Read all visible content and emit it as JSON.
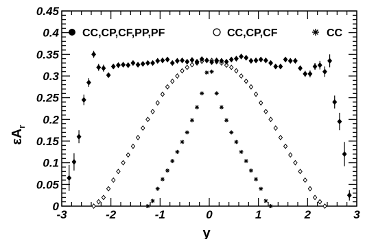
{
  "chart_data": {
    "type": "scatter",
    "xlabel": "y",
    "ylabel": "εA",
    "ylabel_sub": "r",
    "xlim": [
      -3,
      3
    ],
    "ylim": [
      0,
      0.45
    ],
    "x_ticks": [
      "-3",
      "-2",
      "-1",
      "0",
      "1",
      "2",
      "3"
    ],
    "y_ticks": [
      "0",
      "0.05",
      "0.1",
      "0.15",
      "0.2",
      "0.25",
      "0.3",
      "0.35",
      "0.4",
      "0.45"
    ],
    "grid": false,
    "legend_position": "top",
    "series": [
      {
        "name": "CC,CP,CF,PP,PF",
        "marker": "filled-diamond",
        "points": [
          [
            -2.85,
            0.065,
            0.03
          ],
          [
            -2.75,
            0.102,
            0.02
          ],
          [
            -2.65,
            0.16,
            0.015
          ],
          [
            -2.55,
            0.245,
            0.012
          ],
          [
            -2.45,
            0.285,
            0.01
          ],
          [
            -2.35,
            0.35,
            0.008
          ],
          [
            -2.25,
            0.32,
            0.008
          ],
          [
            -2.15,
            0.318,
            0.008
          ],
          [
            -2.05,
            0.302,
            0.006
          ],
          [
            -1.95,
            0.322,
            0.005
          ],
          [
            -1.85,
            0.325,
            0.005
          ],
          [
            -1.75,
            0.326,
            0.004
          ],
          [
            -1.65,
            0.325,
            0.004
          ],
          [
            -1.55,
            0.33,
            0.004
          ],
          [
            -1.45,
            0.326,
            0.004
          ],
          [
            -1.35,
            0.328,
            0.004
          ],
          [
            -1.25,
            0.33,
            0.004
          ],
          [
            -1.15,
            0.33,
            0.004
          ],
          [
            -1.05,
            0.335,
            0.004
          ],
          [
            -0.95,
            0.336,
            0.004
          ],
          [
            -0.85,
            0.338,
            0.004
          ],
          [
            -0.75,
            0.33,
            0.004
          ],
          [
            -0.65,
            0.335,
            0.004
          ],
          [
            -0.55,
            0.336,
            0.004
          ],
          [
            -0.45,
            0.333,
            0.004
          ],
          [
            -0.35,
            0.337,
            0.004
          ],
          [
            -0.25,
            0.333,
            0.004
          ],
          [
            -0.15,
            0.339,
            0.004
          ],
          [
            -0.05,
            0.336,
            0.004
          ],
          [
            0.05,
            0.332,
            0.004
          ],
          [
            0.15,
            0.336,
            0.004
          ],
          [
            0.25,
            0.335,
            0.004
          ],
          [
            0.35,
            0.333,
            0.004
          ],
          [
            0.45,
            0.338,
            0.004
          ],
          [
            0.55,
            0.34,
            0.004
          ],
          [
            0.65,
            0.345,
            0.004
          ],
          [
            0.75,
            0.342,
            0.004
          ],
          [
            0.85,
            0.335,
            0.004
          ],
          [
            0.95,
            0.336,
            0.004
          ],
          [
            1.05,
            0.338,
            0.004
          ],
          [
            1.15,
            0.336,
            0.004
          ],
          [
            1.25,
            0.33,
            0.004
          ],
          [
            1.35,
            0.322,
            0.004
          ],
          [
            1.45,
            0.322,
            0.004
          ],
          [
            1.55,
            0.338,
            0.005
          ],
          [
            1.65,
            0.335,
            0.005
          ],
          [
            1.75,
            0.335,
            0.005
          ],
          [
            1.85,
            0.318,
            0.006
          ],
          [
            1.95,
            0.305,
            0.007
          ],
          [
            2.05,
            0.305,
            0.008
          ],
          [
            2.15,
            0.322,
            0.008
          ],
          [
            2.25,
            0.325,
            0.01
          ],
          [
            2.35,
            0.31,
            0.012
          ],
          [
            2.45,
            0.335,
            0.015
          ],
          [
            2.55,
            0.24,
            0.015
          ],
          [
            2.65,
            0.195,
            0.02
          ],
          [
            2.75,
            0.12,
            0.028
          ],
          [
            2.85,
            0.025,
            0.012
          ]
        ]
      },
      {
        "name": "CC,CP,CF",
        "marker": "open-diamond",
        "points": [
          [
            -2.35,
            0.0
          ],
          [
            -2.25,
            0.01
          ],
          [
            -2.15,
            0.02
          ],
          [
            -2.05,
            0.04
          ],
          [
            -1.95,
            0.06
          ],
          [
            -1.85,
            0.08
          ],
          [
            -1.75,
            0.1
          ],
          [
            -1.65,
            0.118
          ],
          [
            -1.55,
            0.138
          ],
          [
            -1.45,
            0.158
          ],
          [
            -1.35,
            0.18
          ],
          [
            -1.25,
            0.2
          ],
          [
            -1.15,
            0.218
          ],
          [
            -1.05,
            0.238
          ],
          [
            -0.95,
            0.258
          ],
          [
            -0.85,
            0.275
          ],
          [
            -0.75,
            0.288
          ],
          [
            -0.65,
            0.3
          ],
          [
            -0.55,
            0.312
          ],
          [
            -0.45,
            0.32
          ],
          [
            -0.35,
            0.326
          ],
          [
            -0.25,
            0.33
          ],
          [
            -0.15,
            0.334
          ],
          [
            -0.05,
            0.336
          ],
          [
            0.05,
            0.336
          ],
          [
            0.15,
            0.333
          ],
          [
            0.25,
            0.33
          ],
          [
            0.35,
            0.325
          ],
          [
            0.45,
            0.32
          ],
          [
            0.55,
            0.312
          ],
          [
            0.65,
            0.3
          ],
          [
            0.75,
            0.288
          ],
          [
            0.85,
            0.275
          ],
          [
            0.95,
            0.258
          ],
          [
            1.05,
            0.238
          ],
          [
            1.15,
            0.218
          ],
          [
            1.25,
            0.2
          ],
          [
            1.35,
            0.18
          ],
          [
            1.45,
            0.158
          ],
          [
            1.55,
            0.138
          ],
          [
            1.65,
            0.118
          ],
          [
            1.75,
            0.1
          ],
          [
            1.85,
            0.08
          ],
          [
            1.95,
            0.06
          ],
          [
            2.05,
            0.04
          ],
          [
            2.15,
            0.02
          ],
          [
            2.25,
            0.01
          ],
          [
            2.35,
            0.0
          ]
        ]
      },
      {
        "name": "CC",
        "marker": "asterisk",
        "points": [
          [
            -1.25,
            0.0
          ],
          [
            -1.15,
            0.012
          ],
          [
            -1.05,
            0.04
          ],
          [
            -0.95,
            0.062
          ],
          [
            -0.85,
            0.082
          ],
          [
            -0.75,
            0.104
          ],
          [
            -0.65,
            0.125
          ],
          [
            -0.55,
            0.148
          ],
          [
            -0.45,
            0.17
          ],
          [
            -0.35,
            0.198
          ],
          [
            -0.25,
            0.228
          ],
          [
            -0.15,
            0.26
          ],
          [
            -0.05,
            0.308
          ],
          [
            0.05,
            0.31
          ],
          [
            0.15,
            0.26
          ],
          [
            0.25,
            0.228
          ],
          [
            0.35,
            0.198
          ],
          [
            0.45,
            0.17
          ],
          [
            0.55,
            0.148
          ],
          [
            0.65,
            0.125
          ],
          [
            0.75,
            0.104
          ],
          [
            0.85,
            0.082
          ],
          [
            0.95,
            0.062
          ],
          [
            1.05,
            0.04
          ],
          [
            1.15,
            0.012
          ],
          [
            1.25,
            0.0
          ]
        ]
      }
    ]
  }
}
